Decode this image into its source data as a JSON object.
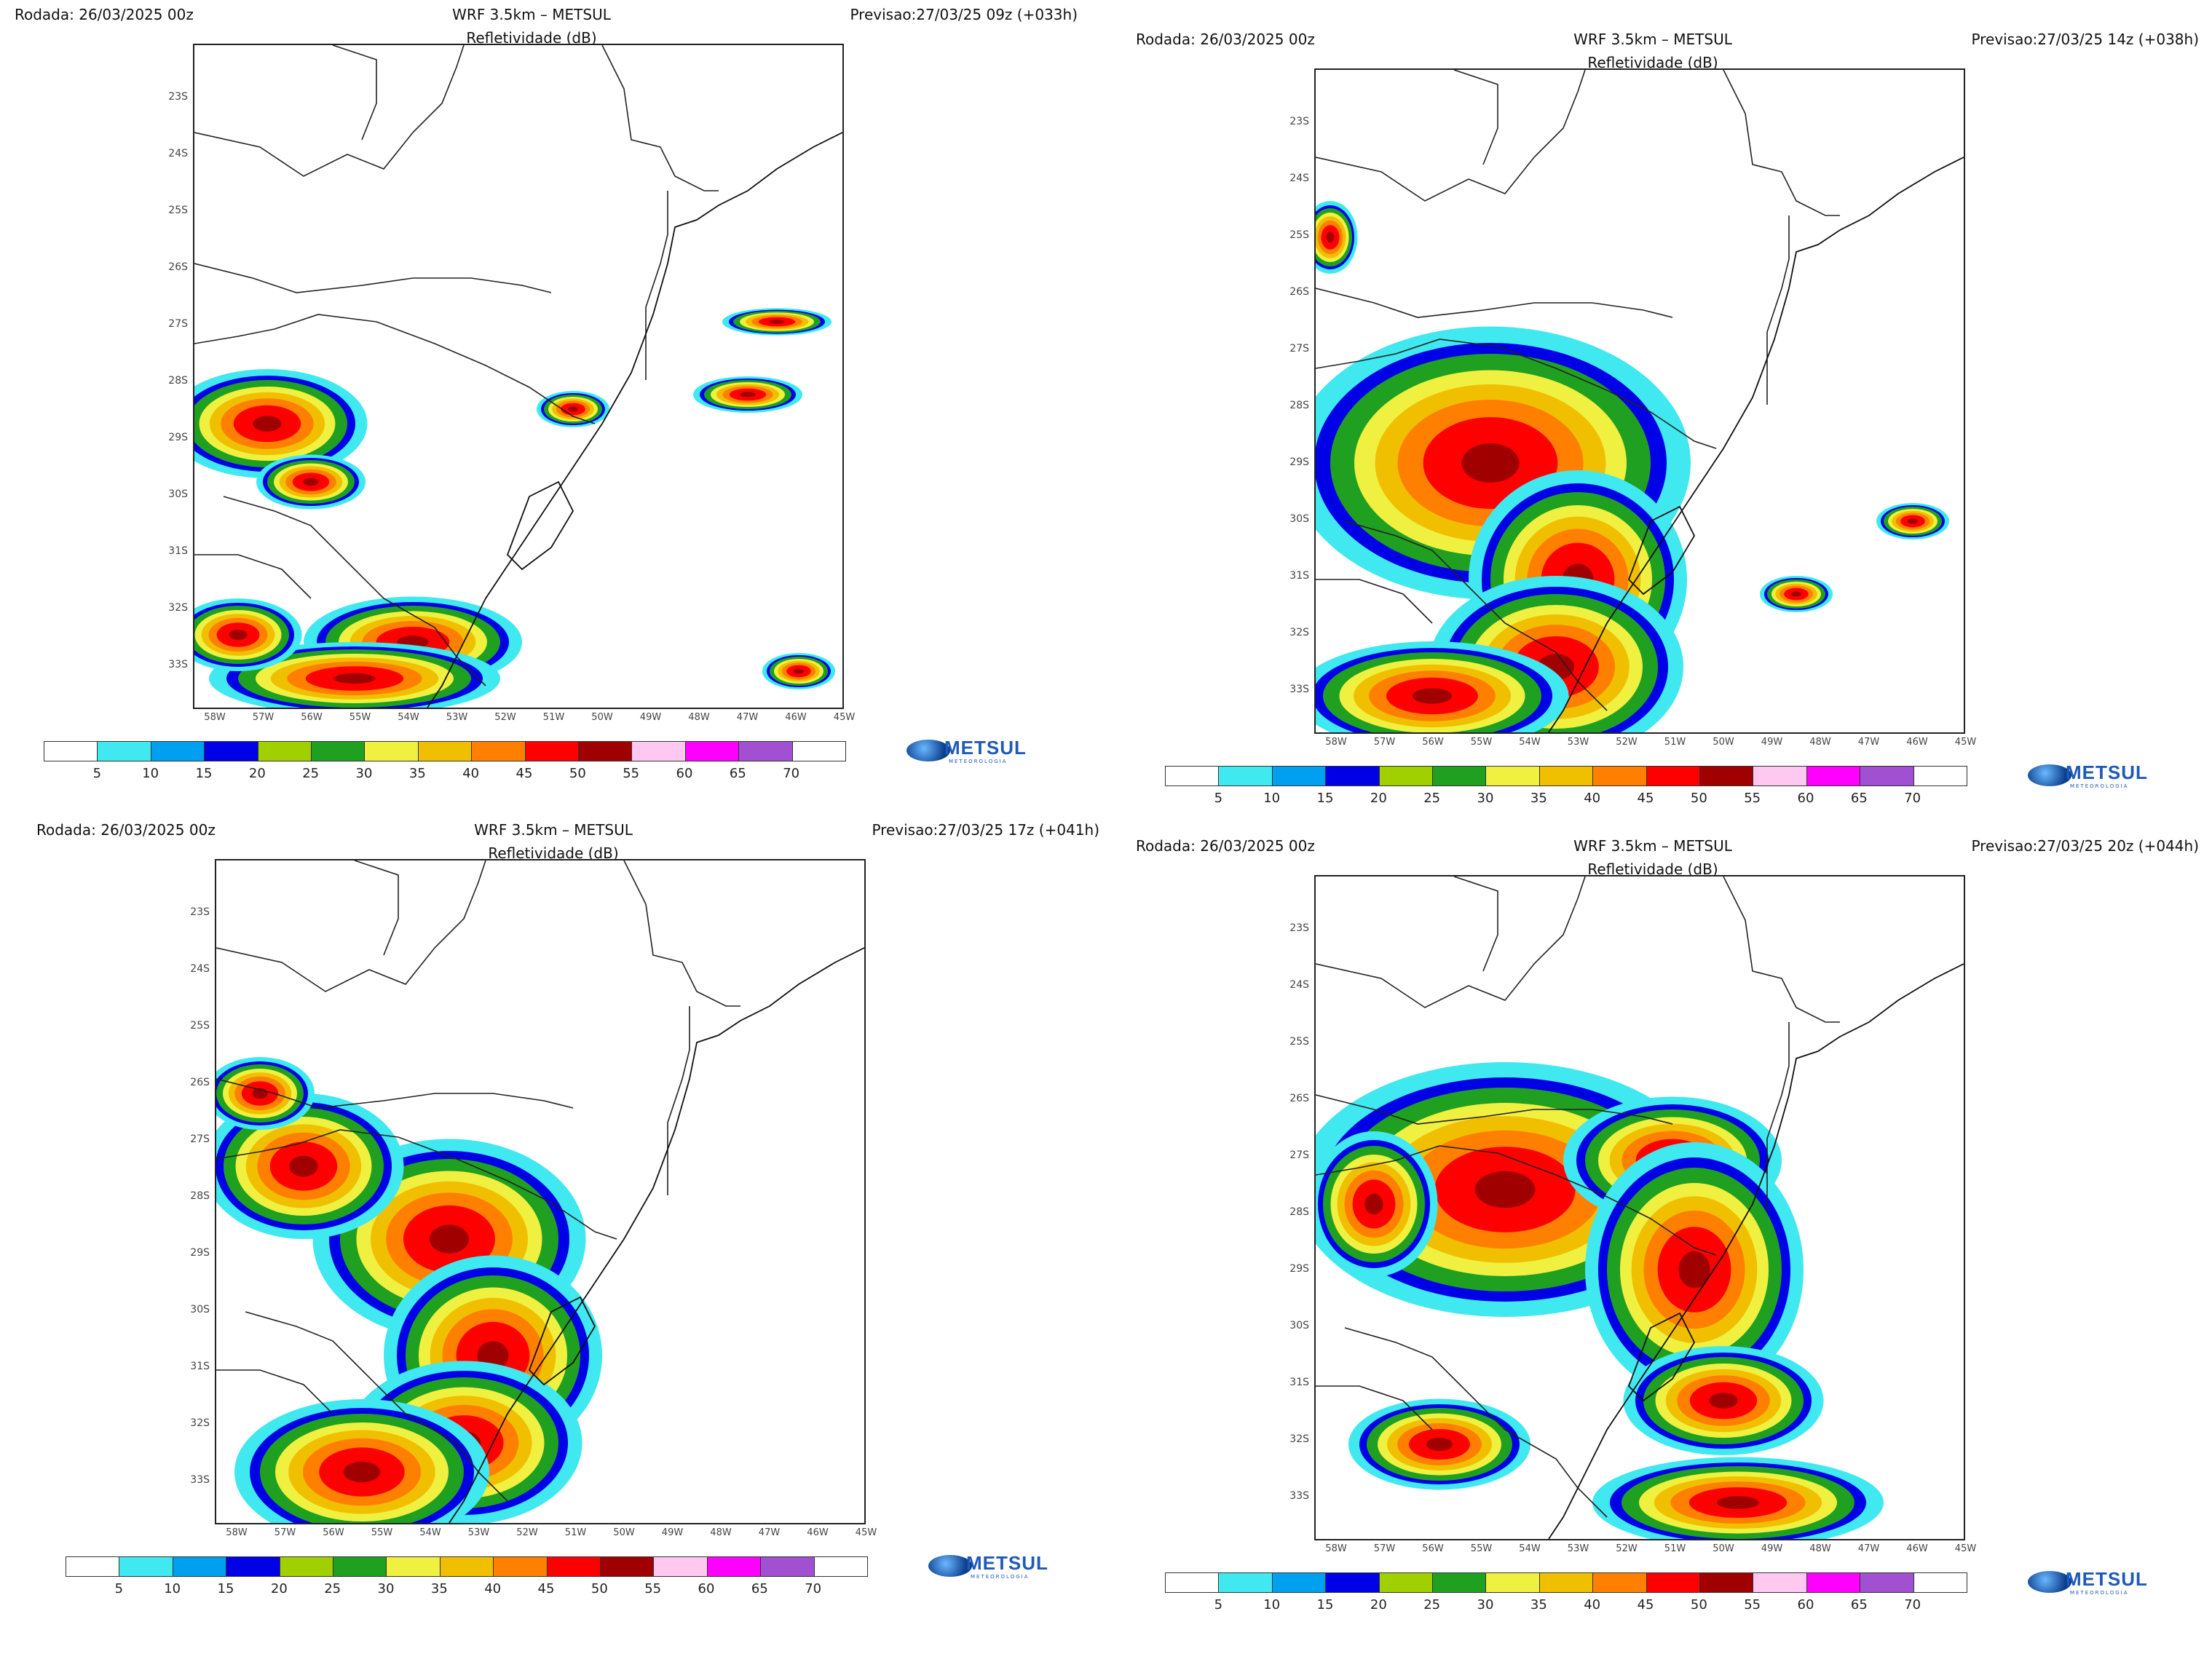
{
  "colorbar": {
    "colors": [
      "#ffffff",
      "#40e8f0",
      "#00a0f0",
      "#0000e6",
      "#a0d000",
      "#20a020",
      "#f0f040",
      "#f0c000",
      "#ff8000",
      "#ff0000",
      "#a00000",
      "#ffc8f0",
      "#ff00ff",
      "#a050d0",
      "#ffffff"
    ],
    "labels": [
      "5",
      "10",
      "15",
      "20",
      "25",
      "30",
      "35",
      "40",
      "45",
      "50",
      "55",
      "60",
      "65",
      "70"
    ]
  },
  "lat_labels": [
    "23S",
    "24S",
    "25S",
    "26S",
    "27S",
    "28S",
    "29S",
    "30S",
    "31S",
    "32S",
    "33S"
  ],
  "lon_labels": [
    "58W",
    "57W",
    "56W",
    "55W",
    "54W",
    "53W",
    "52W",
    "51W",
    "50W",
    "49W",
    "48W",
    "47W",
    "46W",
    "45W"
  ],
  "logo": {
    "name": "METSUL",
    "tagline": "METEOROLOGIA"
  },
  "panels": [
    {
      "rodada": "Rodada: 26/03/2025 00z",
      "model": "WRF 3.5km – METSUL",
      "field": "Refletividade (dB)",
      "previsao": "Previsao:27/03/25 09z (+033h)"
    },
    {
      "rodada": "Rodada: 26/03/2025 00z",
      "model": "WRF 3.5km – METSUL",
      "field": "Refletividade (dB)",
      "previsao": "Previsao:27/03/25 14z (+038h)"
    },
    {
      "rodada": "Rodada: 26/03/2025 00z",
      "model": "WRF 3.5km – METSUL",
      "field": "Refletividade (dB)",
      "previsao": "Previsao:27/03/25 17z (+041h)"
    },
    {
      "rodada": "Rodada: 26/03/2025 00z",
      "model": "WRF 3.5km – METSUL",
      "field": "Refletividade (dB)",
      "previsao": "Previsao:27/03/25 20z (+044h)"
    }
  ]
}
